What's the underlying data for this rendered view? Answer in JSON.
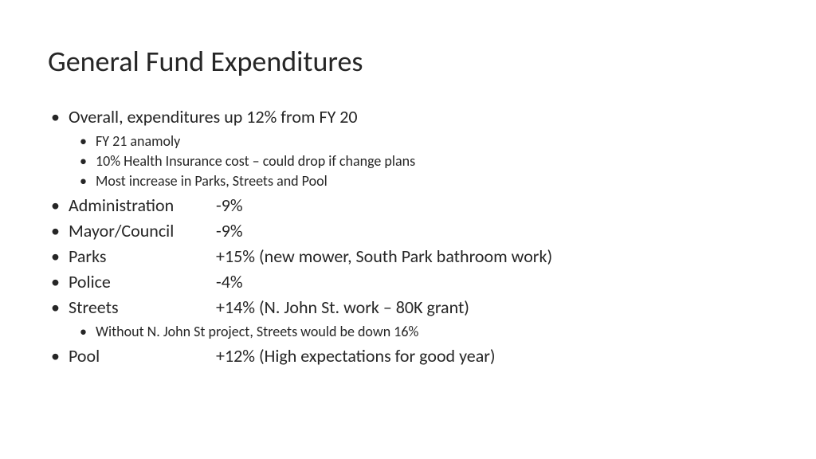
{
  "title": "General Fund Expenditures",
  "items": [
    {
      "text": "Overall, expenditures up 12% from FY 20",
      "sub": [
        "FY 21 anamoly",
        "10% Health Insurance cost – could drop if change plans",
        "Most increase in Parks, Streets and Pool"
      ]
    },
    {
      "label": "Administration",
      "value": "-9%"
    },
    {
      "label": "Mayor/Council",
      "value": "-9%"
    },
    {
      "label": "Parks",
      "value": "+15% (new mower, South Park bathroom work)"
    },
    {
      "label": "Police",
      "value": "-4%"
    },
    {
      "label": "Streets",
      "value": "+14% (N. John St. work – 80K grant)",
      "sub": [
        "Without N. John St project, Streets would be down 16%"
      ]
    },
    {
      "label": "Pool",
      "value": "+12% (High expectations for good year)"
    }
  ],
  "style": {
    "background_color": "#ffffff",
    "text_color": "#262626",
    "title_fontsize": 36,
    "level1_fontsize": 22,
    "level2_fontsize": 18,
    "font_family": "Calibri"
  }
}
